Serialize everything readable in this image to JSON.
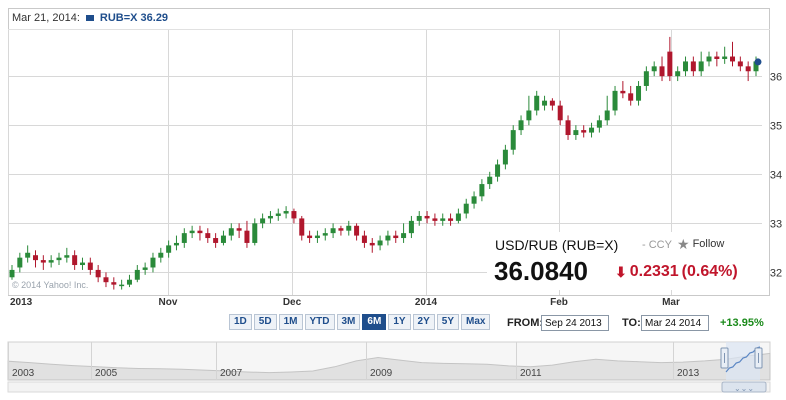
{
  "legend": {
    "date": "Mar 21, 2014:",
    "series_label": "RUB=X 36.29"
  },
  "watermark": "© 2014 Yahoo! Inc.",
  "quote": {
    "title": "USD/RUB (RUB=X)",
    "ccy": "- CCY",
    "follow_label": "Follow",
    "price": "36.0840",
    "change": "0.2331",
    "change_pct": "(0.64%)"
  },
  "range_buttons": [
    "1D",
    "5D",
    "1M",
    "YTD",
    "3M",
    "6M",
    "1Y",
    "2Y",
    "5Y",
    "Max"
  ],
  "active_range": "6M",
  "from_label": "FROM:",
  "from_value": "Sep 24 2013",
  "to_label": "TO:",
  "to_value": "Mar 24 2014",
  "period_change": "+13.95%",
  "colors": {
    "up": "#2a8a3a",
    "down": "#b0172d",
    "accent": "#1f4e8c",
    "grid": "#d8d8d8"
  },
  "chart_data": {
    "type": "candlestick",
    "x_ticks": [
      "2013",
      "Nov",
      "Dec",
      "2014",
      "Feb",
      "Mar"
    ],
    "y_ticks": [
      32,
      33,
      34,
      35,
      36
    ],
    "ylim": [
      31.6,
      36.9
    ],
    "last_marker": 36.29,
    "candles": [
      [
        31.9,
        32.05,
        31.85,
        32.15
      ],
      [
        32.1,
        32.3,
        32.0,
        32.4
      ],
      [
        32.3,
        32.4,
        32.2,
        32.55
      ],
      [
        32.35,
        32.25,
        32.1,
        32.45
      ],
      [
        32.25,
        32.2,
        32.05,
        32.35
      ],
      [
        32.2,
        32.25,
        32.1,
        32.35
      ],
      [
        32.25,
        32.3,
        32.15,
        32.4
      ],
      [
        32.3,
        32.35,
        32.2,
        32.5
      ],
      [
        32.35,
        32.15,
        32.05,
        32.45
      ],
      [
        32.15,
        32.2,
        32.05,
        32.3
      ],
      [
        32.2,
        32.05,
        31.95,
        32.3
      ],
      [
        32.05,
        31.9,
        31.8,
        32.15
      ],
      [
        31.9,
        31.8,
        31.7,
        32.0
      ],
      [
        31.8,
        31.75,
        31.65,
        31.9
      ],
      [
        31.75,
        31.75,
        31.65,
        31.85
      ],
      [
        31.75,
        31.85,
        31.7,
        31.95
      ],
      [
        31.85,
        32.05,
        31.8,
        32.15
      ],
      [
        32.05,
        32.1,
        31.95,
        32.2
      ],
      [
        32.1,
        32.3,
        32.0,
        32.4
      ],
      [
        32.3,
        32.4,
        32.2,
        32.5
      ],
      [
        32.4,
        32.55,
        32.3,
        32.65
      ],
      [
        32.55,
        32.6,
        32.45,
        32.75
      ],
      [
        32.6,
        32.8,
        32.5,
        32.9
      ],
      [
        32.8,
        32.85,
        32.7,
        32.95
      ],
      [
        32.85,
        32.8,
        32.65,
        32.95
      ],
      [
        32.8,
        32.7,
        32.6,
        32.9
      ],
      [
        32.7,
        32.6,
        32.5,
        32.8
      ],
      [
        32.6,
        32.75,
        32.55,
        32.85
      ],
      [
        32.75,
        32.9,
        32.65,
        33.0
      ],
      [
        32.9,
        32.85,
        32.7,
        33.0
      ],
      [
        32.85,
        32.6,
        32.5,
        33.05
      ],
      [
        32.6,
        33.0,
        32.55,
        33.1
      ],
      [
        33.0,
        33.1,
        32.9,
        33.2
      ],
      [
        33.1,
        33.15,
        33.0,
        33.25
      ],
      [
        33.15,
        33.2,
        33.05,
        33.3
      ],
      [
        33.2,
        33.25,
        33.1,
        33.35
      ],
      [
        33.25,
        33.1,
        33.0,
        33.3
      ],
      [
        33.1,
        32.75,
        32.65,
        33.15
      ],
      [
        32.75,
        32.7,
        32.6,
        32.85
      ],
      [
        32.7,
        32.75,
        32.6,
        32.85
      ],
      [
        32.75,
        32.8,
        32.65,
        32.9
      ],
      [
        32.8,
        32.9,
        32.7,
        33.0
      ],
      [
        32.9,
        32.85,
        32.75,
        32.95
      ],
      [
        32.85,
        32.95,
        32.75,
        33.05
      ],
      [
        32.95,
        32.75,
        32.65,
        33.0
      ],
      [
        32.75,
        32.6,
        32.5,
        32.85
      ],
      [
        32.6,
        32.55,
        32.4,
        32.7
      ],
      [
        32.55,
        32.65,
        32.45,
        32.75
      ],
      [
        32.65,
        32.75,
        32.55,
        32.85
      ],
      [
        32.75,
        32.7,
        32.6,
        32.85
      ],
      [
        32.7,
        32.8,
        32.6,
        33.0
      ],
      [
        32.8,
        33.05,
        32.7,
        33.15
      ],
      [
        33.05,
        33.15,
        32.95,
        33.25
      ],
      [
        33.15,
        33.1,
        33.0,
        33.25
      ],
      [
        33.1,
        33.05,
        32.95,
        33.2
      ],
      [
        33.05,
        33.1,
        32.95,
        33.2
      ],
      [
        33.1,
        33.05,
        32.95,
        33.2
      ],
      [
        33.05,
        33.2,
        33.0,
        33.3
      ],
      [
        33.2,
        33.4,
        33.1,
        33.5
      ],
      [
        33.4,
        33.55,
        33.3,
        33.65
      ],
      [
        33.55,
        33.8,
        33.45,
        33.9
      ],
      [
        33.8,
        33.95,
        33.7,
        34.05
      ],
      [
        33.95,
        34.2,
        33.85,
        34.3
      ],
      [
        34.2,
        34.5,
        34.1,
        34.6
      ],
      [
        34.5,
        34.9,
        34.4,
        35.0
      ],
      [
        34.9,
        35.1,
        34.8,
        35.2
      ],
      [
        35.1,
        35.3,
        35.0,
        35.6
      ],
      [
        35.3,
        35.6,
        35.2,
        35.7
      ],
      [
        35.4,
        35.5,
        35.3,
        35.6
      ],
      [
        35.5,
        35.4,
        35.3,
        35.55
      ],
      [
        35.4,
        35.1,
        35.0,
        35.5
      ],
      [
        35.1,
        34.8,
        34.7,
        35.2
      ],
      [
        34.8,
        34.9,
        34.7,
        35.0
      ],
      [
        34.9,
        34.85,
        34.75,
        35.0
      ],
      [
        34.85,
        34.95,
        34.75,
        35.05
      ],
      [
        34.95,
        35.1,
        34.85,
        35.2
      ],
      [
        35.1,
        35.3,
        35.0,
        35.6
      ],
      [
        35.3,
        35.7,
        35.2,
        35.8
      ],
      [
        35.7,
        35.65,
        35.55,
        35.9
      ],
      [
        35.65,
        35.5,
        35.4,
        35.8
      ],
      [
        35.5,
        35.8,
        35.4,
        35.9
      ],
      [
        35.8,
        36.1,
        35.7,
        36.2
      ],
      [
        36.1,
        36.2,
        36.0,
        36.3
      ],
      [
        36.2,
        36.0,
        35.9,
        36.4
      ],
      [
        36.5,
        36.0,
        35.9,
        36.8
      ],
      [
        36.0,
        36.1,
        35.9,
        36.2
      ],
      [
        36.1,
        36.3,
        36.0,
        36.4
      ],
      [
        36.3,
        36.1,
        36.0,
        36.4
      ],
      [
        36.1,
        36.3,
        36.0,
        36.5
      ],
      [
        36.3,
        36.4,
        36.2,
        36.5
      ],
      [
        36.4,
        36.35,
        36.2,
        36.5
      ],
      [
        36.35,
        36.4,
        36.25,
        36.6
      ],
      [
        36.4,
        36.3,
        36.2,
        36.7
      ],
      [
        36.3,
        36.2,
        36.1,
        36.4
      ],
      [
        36.2,
        36.1,
        35.9,
        36.3
      ],
      [
        36.1,
        36.3,
        36.0,
        36.4
      ]
    ],
    "navigator": {
      "labels": [
        "2003",
        "2005",
        "2007",
        "2009",
        "2011",
        "2013"
      ],
      "values": [
        31.3,
        30.5,
        29.5,
        28.7,
        28.1,
        27.4,
        27.0,
        26.8,
        26.5,
        26.0,
        25.5,
        24.9,
        24.5,
        24.9,
        25.5,
        28.0,
        31.5,
        33.5,
        32.0,
        30.5,
        30.0,
        29.8,
        29.5,
        28.5,
        28.0,
        29.0,
        31.0,
        32.5,
        31.5,
        31.0,
        30.5,
        30.8,
        31.5,
        32.5,
        34.5,
        36.0
      ]
    }
  }
}
